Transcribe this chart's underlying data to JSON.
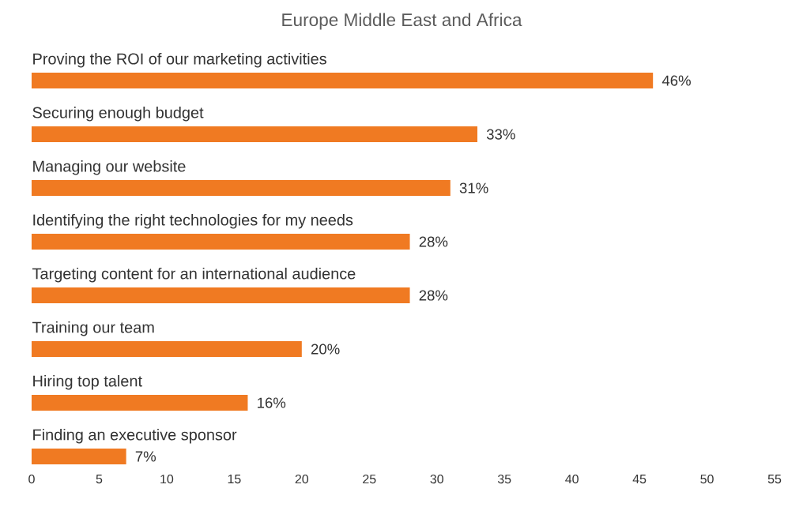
{
  "chart_data": {
    "type": "bar",
    "orientation": "horizontal",
    "title": "Europe Middle East and Africa",
    "categories": [
      "Proving the ROI of our marketing activities",
      "Securing enough budget",
      "Managing our website",
      "Identifying the right technologies for my needs",
      "Targeting content for an international audience",
      "Training our team",
      "Hiring top talent",
      "Finding an executive sponsor"
    ],
    "values": [
      46,
      33,
      31,
      28,
      28,
      20,
      16,
      7
    ],
    "value_labels": [
      "46%",
      "33%",
      "31%",
      "28%",
      "28%",
      "20%",
      "16%",
      "7%"
    ],
    "color": "#f07a22",
    "xlim": [
      0,
      55
    ],
    "xticks": [
      0,
      5,
      10,
      15,
      20,
      25,
      30,
      35,
      40,
      45,
      50,
      55
    ]
  }
}
